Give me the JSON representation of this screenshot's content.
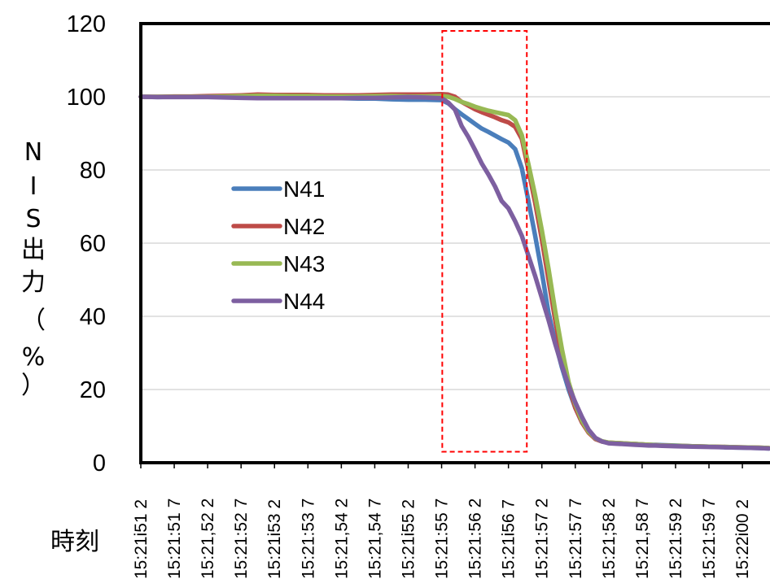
{
  "chart_data": {
    "type": "line",
    "xlabel": "時刻",
    "ylabel": [
      "N",
      "I",
      "S",
      "出",
      "力",
      "（",
      "%",
      "）"
    ],
    "ylim": [
      0,
      120
    ],
    "yticks": [
      0,
      20,
      40,
      60,
      80,
      100,
      120
    ],
    "grid": "horizontal",
    "legend_position": "left-middle",
    "xtick_labels": [
      "15:21i51 2",
      "15:21:51 7",
      "15:21,52 2",
      "15:21:52 7",
      "15:21i53 2",
      "15:21:53 7",
      "15:21,54 2",
      "15:21,54 7",
      "15:21i55 2",
      "15:21:55 7",
      "15:21:56 2",
      "15:21i56 7",
      "15:21:57 2",
      "15:21:57 7",
      "15:21;58 2",
      "15:21,58 7",
      "15:21:59 2",
      "15:21:59 7",
      "15:22i00 2"
    ],
    "x_range": [
      0,
      18.8
    ],
    "x": [
      0,
      0.5,
      1,
      1.5,
      2,
      2.5,
      3,
      3.5,
      4,
      4.5,
      5,
      5.5,
      6,
      6.5,
      7,
      7.5,
      8,
      8.5,
      9,
      9.2,
      9.4,
      9.6,
      9.8,
      10,
      10.2,
      10.4,
      10.6,
      10.8,
      11,
      11.2,
      11.4,
      11.6,
      11.8,
      12,
      12.2,
      12.4,
      12.6,
      12.8,
      13,
      13.2,
      13.4,
      13.6,
      13.8,
      14,
      14.2,
      14.4,
      14.6,
      14.8,
      15,
      15.2,
      15.4,
      15.6,
      16,
      16.5,
      17,
      17.5,
      18,
      18.5,
      18.8
    ],
    "series": [
      {
        "name": "N41",
        "color": "#4a7ebb",
        "values": [
          100,
          99.9,
          100,
          100,
          100,
          99.9,
          99.8,
          99.7,
          99.8,
          99.7,
          99.8,
          99.6,
          99.6,
          99.5,
          99.5,
          99.3,
          99.2,
          99.2,
          99.1,
          98.2,
          96.6,
          95.2,
          93.9,
          92.6,
          91.3,
          90.4,
          89.4,
          88.4,
          87.5,
          85.7,
          80.5,
          71.5,
          62,
          52,
          41,
          33,
          26,
          20,
          15,
          11,
          8.3,
          6.5,
          5.8,
          5.4,
          5.3,
          5.2,
          5.1,
          5.1,
          5,
          4.9,
          4.9,
          4.8,
          4.7,
          4.5,
          4.4,
          4.2,
          4.1,
          4,
          3.9
        ]
      },
      {
        "name": "N42",
        "color": "#be4b48",
        "values": [
          100,
          100,
          100.1,
          100.1,
          100.2,
          100.3,
          100.4,
          100.6,
          100.5,
          100.5,
          100.5,
          100.4,
          100.4,
          100.4,
          100.5,
          100.6,
          100.6,
          100.6,
          100.7,
          100.6,
          100,
          98.6,
          97.6,
          96.6,
          95.8,
          95.1,
          94.4,
          93.6,
          93,
          91.8,
          88.5,
          80,
          71,
          61,
          50,
          39,
          29,
          21,
          15,
          11,
          8.2,
          6.5,
          5.8,
          5.5,
          5.4,
          5.3,
          5.2,
          5.1,
          5,
          4.9,
          4.8,
          4.7,
          4.6,
          4.5,
          4.4,
          4.3,
          4.2,
          4.1,
          4
        ]
      },
      {
        "name": "N43",
        "color": "#98b954",
        "values": [
          100,
          100,
          100,
          100,
          100,
          100.1,
          100.2,
          100.3,
          100.3,
          100.2,
          100.2,
          100.1,
          100.1,
          100.1,
          100.2,
          100.2,
          100.1,
          100.1,
          100.2,
          100,
          99.4,
          98.6,
          98,
          97.3,
          96.7,
          96.2,
          95.8,
          95.4,
          95,
          93.6,
          89.5,
          81.5,
          73,
          63.5,
          53,
          41.5,
          31,
          22,
          16,
          11.5,
          8.5,
          6.7,
          5.9,
          5.5,
          5.4,
          5.3,
          5.2,
          5.1,
          5,
          4.9,
          4.8,
          4.7,
          4.6,
          4.5,
          4.4,
          4.3,
          4.2,
          4.1,
          4
        ]
      },
      {
        "name": "N44",
        "color": "#7d5fa0",
        "values": [
          100,
          99.9,
          99.9,
          99.9,
          99.9,
          99.8,
          99.7,
          99.6,
          99.6,
          99.6,
          99.6,
          99.6,
          99.6,
          99.7,
          99.7,
          99.8,
          99.9,
          99.8,
          99.6,
          98.4,
          96.5,
          92,
          89,
          85.5,
          81.8,
          78.8,
          75.5,
          71.5,
          69.5,
          66,
          62,
          56.5,
          51,
          45,
          39,
          32.5,
          26.5,
          21,
          16.5,
          12.5,
          9,
          6.8,
          5.8,
          5.3,
          5.2,
          5.1,
          5,
          4.9,
          4.8,
          4.7,
          4.7,
          4.6,
          4.5,
          4.4,
          4.3,
          4.2,
          4.1,
          4,
          3.9
        ]
      }
    ],
    "highlight_box": {
      "x_range": [
        9.02,
        11.55
      ],
      "y_range": [
        3,
        118
      ]
    }
  }
}
